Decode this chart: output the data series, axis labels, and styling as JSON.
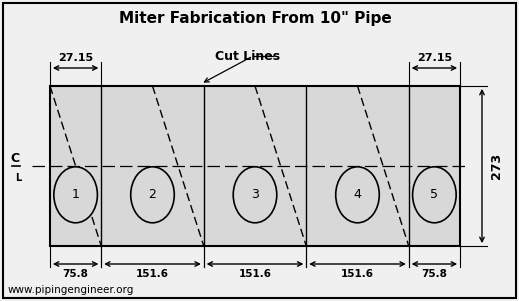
{
  "title": "Miter Fabrication From 10\" Pipe",
  "cut_lines_label": "Cut Lines",
  "website": "www.pipingengineer.org",
  "facecolor": "#f0f0f0",
  "rect_facecolor": "#d8d8d8",
  "dim_27_15": "27.15",
  "dim_273": "273",
  "bottom_dims": [
    "75.8",
    "151.6",
    "151.6",
    "151.6",
    "75.8"
  ],
  "piece_labels": [
    "1",
    "2",
    "3",
    "4",
    "5"
  ],
  "seg_widths_mm": [
    75.8,
    151.6,
    151.6,
    151.6,
    75.8
  ]
}
